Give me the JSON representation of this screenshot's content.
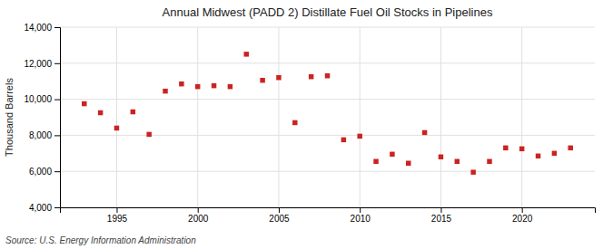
{
  "chart_data": {
    "type": "scatter",
    "title": "Annual Midwest (PADD 2) Distillate Fuel Oil Stocks in Pipelines",
    "ylabel": "Thousand Barrels",
    "annotation": "Source: U.S. Energy Information Administration",
    "x": [
      1993,
      1994,
      1995,
      1996,
      1997,
      1998,
      1999,
      2000,
      2001,
      2002,
      2003,
      2004,
      2005,
      2006,
      2007,
      2008,
      2009,
      2010,
      2011,
      2012,
      2013,
      2014,
      2015,
      2016,
      2017,
      2018,
      2019,
      2020,
      2021,
      2022,
      2023
    ],
    "values": [
      9750,
      9250,
      8400,
      9300,
      8050,
      10450,
      10850,
      10700,
      10750,
      10700,
      12500,
      11050,
      11200,
      8700,
      11250,
      11300,
      7750,
      7950,
      6550,
      6950,
      6450,
      8150,
      6800,
      6550,
      5950,
      6550,
      7300,
      7250,
      6850,
      7000,
      7300
    ],
    "color": "#cc2222",
    "marker": "square",
    "xlim": [
      1991.5,
      2024.5
    ],
    "xticks": [
      1995,
      2000,
      2005,
      2010,
      2015,
      2020
    ],
    "ylim": [
      4000,
      14000
    ],
    "yticks": [
      {
        "value": 4000,
        "label": "4,000"
      },
      {
        "value": 6000,
        "label": "6,000"
      },
      {
        "value": 8000,
        "label": "8,000"
      },
      {
        "value": 10000,
        "label": "10,000"
      },
      {
        "value": 12000,
        "label": "12,000"
      },
      {
        "value": 14000,
        "label": "14,000"
      }
    ],
    "grid": true
  }
}
